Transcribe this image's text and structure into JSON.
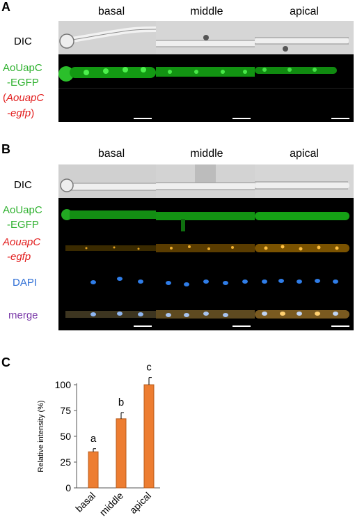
{
  "panelA": {
    "letter": "A",
    "columns": [
      "basal",
      "middle",
      "apical"
    ],
    "rows": {
      "dic": "DIC",
      "green_line1": "AoUapC",
      "green_line2": "-EGFP",
      "red_open": "(",
      "red_line1": "AouapC",
      "red_line2": "-egfp",
      "red_close": ")"
    }
  },
  "panelB": {
    "letter": "B",
    "columns": [
      "basal",
      "middle",
      "apical"
    ],
    "rows": {
      "dic": "DIC",
      "green_line1": "AoUapC",
      "green_line2": "-EGFP",
      "red_line1": "AouapC",
      "red_line2": "-egfp",
      "dapi": "DAPI",
      "merge": "merge"
    }
  },
  "panelC": {
    "letter": "C"
  },
  "colors": {
    "bar": "#ed7d31",
    "bar_edge": "#b85c1c",
    "egfp": "#2fb12f",
    "mrna": "#e21d1d",
    "dapi": "#2f6fd6",
    "merge": "#7a3aa8"
  },
  "chart_data": {
    "type": "bar",
    "categories": [
      "basal",
      "middle",
      "apical"
    ],
    "values": [
      35,
      67,
      100
    ],
    "errors": [
      3,
      6,
      7
    ],
    "letters": [
      "a",
      "b",
      "c"
    ],
    "ylabel": "Relative intensity (%)",
    "xlabel": "",
    "ylim": [
      0,
      125
    ],
    "yticks": [
      "0",
      "25",
      "50",
      "75",
      "100"
    ],
    "grid": false
  }
}
